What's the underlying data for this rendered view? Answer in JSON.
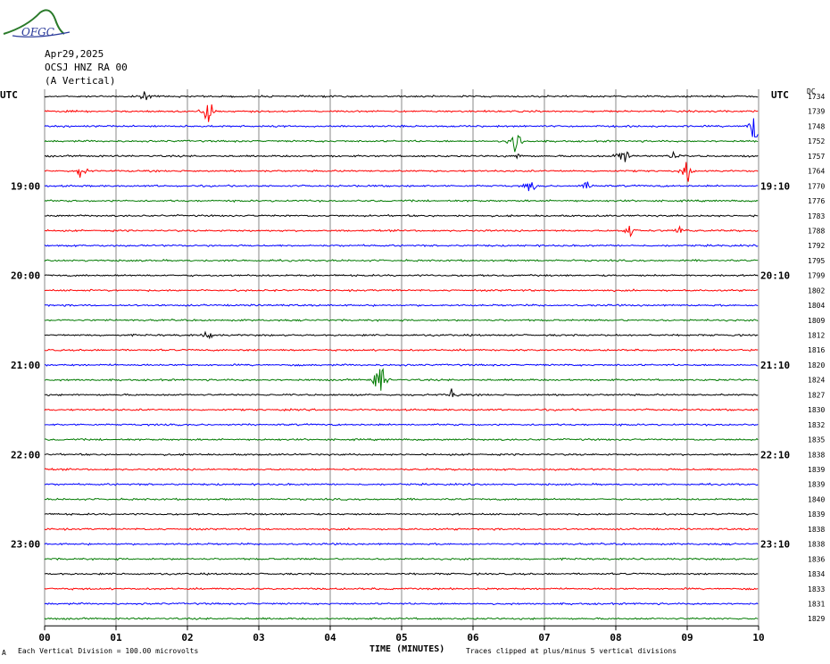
{
  "logo": {
    "text": "OFGC"
  },
  "header": {
    "date": "Apr29,2025",
    "station": "OCSJ HNZ RA 00",
    "component": "(A Vertical)"
  },
  "utc_left": "UTC",
  "utc_right": "UTC",
  "dc_label": "DC",
  "x_axis_title": "TIME (MINUTES)",
  "footer": {
    "mark": "A",
    "scale_note": "Each Vertical Division =  100.00 microvolts",
    "clip_note": "Traces clipped at plus/minus 5 vertical divisions"
  },
  "chart_data": {
    "type": "line",
    "title": "",
    "xlabel": "TIME (MINUTES)",
    "xlim": [
      0,
      10
    ],
    "x_ticks": [
      "00",
      "01",
      "02",
      "03",
      "04",
      "05",
      "06",
      "07",
      "08",
      "09",
      "10"
    ],
    "trace_colors": [
      "#000000",
      "#ff0000",
      "#0000ff",
      "#007a00"
    ],
    "left_time_labels": [
      {
        "trace": 6,
        "label": "19:00"
      },
      {
        "trace": 12,
        "label": "20:00"
      },
      {
        "trace": 18,
        "label": "21:00"
      },
      {
        "trace": 24,
        "label": "22:00"
      },
      {
        "trace": 30,
        "label": "23:00"
      }
    ],
    "right_time_labels": [
      {
        "trace": 6,
        "label": "19:10"
      },
      {
        "trace": 12,
        "label": "20:10"
      },
      {
        "trace": 18,
        "label": "21:10"
      },
      {
        "trace": 24,
        "label": "22:10"
      },
      {
        "trace": 30,
        "label": "23:10"
      }
    ],
    "dc_offsets": [
      "1734",
      "1739",
      "1748",
      "1752",
      "1757",
      "1764",
      "1770",
      "1776",
      "1783",
      "1788",
      "1792",
      "1795",
      "1799",
      "1802",
      "1804",
      "1809",
      "1812",
      "1816",
      "1820",
      "1824",
      "1827",
      "1830",
      "1832",
      "1835",
      "1838",
      "1839",
      "1839",
      "1840",
      "1839",
      "1838",
      "1838",
      "1836",
      "1834",
      "1833",
      "1831",
      "1829"
    ],
    "events": [
      {
        "trace": 0,
        "minute": 1.4,
        "amp": 0.25
      },
      {
        "trace": 1,
        "minute": 2.3,
        "amp": 1.0
      },
      {
        "trace": 2,
        "minute": 9.95,
        "amp": 1.0
      },
      {
        "trace": 3,
        "minute": 6.6,
        "amp": 1.0
      },
      {
        "trace": 4,
        "minute": 8.1,
        "amp": 0.6
      },
      {
        "trace": 4,
        "minute": 6.6,
        "amp": 0.25
      },
      {
        "trace": 4,
        "minute": 8.8,
        "amp": 0.35
      },
      {
        "trace": 5,
        "minute": 0.5,
        "amp": 0.35
      },
      {
        "trace": 5,
        "minute": 9.0,
        "amp": 0.5
      },
      {
        "trace": 6,
        "minute": 7.6,
        "amp": 0.35
      },
      {
        "trace": 6,
        "minute": 6.8,
        "amp": 0.3
      },
      {
        "trace": 9,
        "minute": 8.2,
        "amp": 0.35
      },
      {
        "trace": 9,
        "minute": 8.9,
        "amp": 0.3
      },
      {
        "trace": 16,
        "minute": 2.3,
        "amp": 0.25
      },
      {
        "trace": 19,
        "minute": 4.7,
        "amp": 1.0
      },
      {
        "trace": 20,
        "minute": 5.7,
        "amp": 0.3
      }
    ]
  }
}
